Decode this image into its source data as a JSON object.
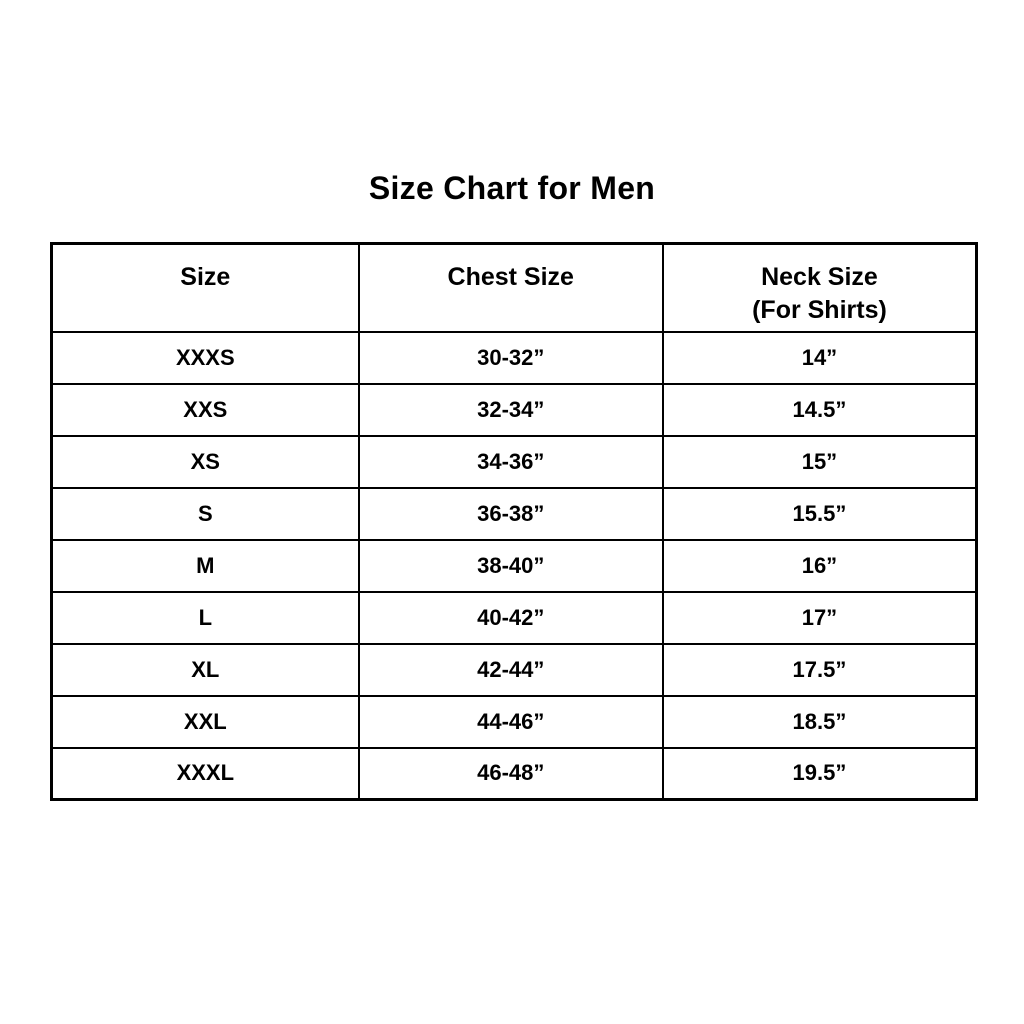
{
  "page": {
    "title": "Size Chart for Men"
  },
  "colors": {
    "background": "#ffffff",
    "text": "#000000",
    "border": "#000000"
  },
  "chart_data": {
    "type": "table",
    "title": "Size Chart for Men",
    "columns": [
      {
        "text": "Size",
        "sub": ""
      },
      {
        "text": "Chest Size",
        "sub": ""
      },
      {
        "text": "Neck Size",
        "sub": "(For Shirts)"
      }
    ],
    "rows": [
      [
        "XXXS",
        "30-32”",
        "14”"
      ],
      [
        "XXS",
        "32-34”",
        "14.5”"
      ],
      [
        "XS",
        "34-36”",
        "15”"
      ],
      [
        "S",
        "36-38”",
        "15.5”"
      ],
      [
        "M",
        "38-40”",
        "16”"
      ],
      [
        "L",
        "40-42”",
        "17”"
      ],
      [
        "XL",
        "42-44”",
        "17.5”"
      ],
      [
        "XXL",
        "44-46”",
        "18.5”"
      ],
      [
        "XXXL",
        "46-48”",
        "19.5”"
      ]
    ]
  }
}
